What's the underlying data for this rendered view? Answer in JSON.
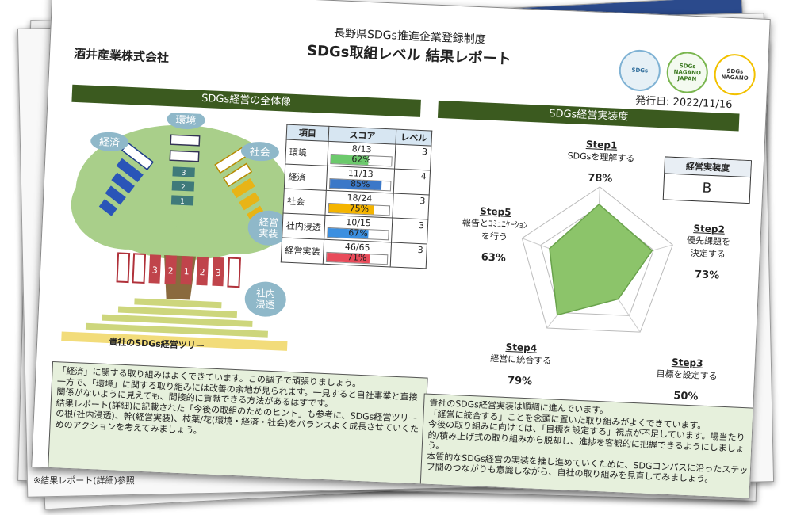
{
  "header": {
    "subtitle": "長野県SDGs推進企業登録制度",
    "title": "SDGs取組レベル 結果レポート",
    "company": "酒井産業株式会社",
    "issue_date": "発行日: 2022/11/16"
  },
  "logos": [
    {
      "name": "nagano-sdgs-logo",
      "text": "SDGs"
    },
    {
      "name": "sdgs-nagano-japan-logo",
      "text": "SDGs NAGANO JAPAN"
    },
    {
      "name": "sdgs-nagano-logo",
      "text": "SDGs NAGANO"
    }
  ],
  "left_section": {
    "heading": "SDGs経営の全体像",
    "tree_labels": {
      "environment": "環境",
      "economy": "経済",
      "society": "社会",
      "management": "経営\n実装",
      "penetration": "社内\n浸透"
    },
    "tree_caption": "貴社のSDGs経営ツリー",
    "table": {
      "headers": [
        "項目",
        "スコア",
        "レベル"
      ],
      "rows": [
        {
          "item": "環境",
          "score": "8/13",
          "level": "3",
          "pct": 62,
          "pct_label": "62%",
          "color": "#6cc96c"
        },
        {
          "item": "経済",
          "score": "11/13",
          "level": "4",
          "pct": 85,
          "pct_label": "85%",
          "color": "#3b78c8"
        },
        {
          "item": "社会",
          "score": "18/24",
          "level": "3",
          "pct": 75,
          "pct_label": "75%",
          "color": "#f4b400"
        },
        {
          "item": "社内浸透",
          "score": "10/15",
          "level": "3",
          "pct": 67,
          "pct_label": "67%",
          "color": "#3b8fe0"
        },
        {
          "item": "経営実装",
          "score": "46/65",
          "level": "3",
          "pct": 71,
          "pct_label": "71%",
          "color": "#e84b5a"
        }
      ]
    },
    "comment": "「経済」に関する取り組みはよくできています。この調子で頑張りましょう。\n一方で、「環境」に関する取り組みには改善の余地が見られます。一見すると自社事業と直接関係がないように見えても、間接的に貢献できる方法があるはずです。\n結果レポート(詳細)に記載された「今後の取組のためのヒント」も参考に、SDGs経営ツリーの根(社内浸透)、幹(経営実装)、枝葉/花(環境・経済・社会)をバランスよく成長させていくためのアクションを考えてみましょう。"
  },
  "right_section": {
    "heading": "SDGs経営実装度",
    "level_box": {
      "label": "経営実装度",
      "value": "B"
    },
    "steps": [
      {
        "step": "Step1",
        "desc": "SDGsを理解する",
        "pct": 78,
        "pct_label": "78%"
      },
      {
        "step": "Step2",
        "desc": "優先課題を\n決定する",
        "pct": 73,
        "pct_label": "73%"
      },
      {
        "step": "Step3",
        "desc": "目標を設定する",
        "pct": 50,
        "pct_label": "50%"
      },
      {
        "step": "Step4",
        "desc": "経営に統合する",
        "pct": 79,
        "pct_label": "79%"
      },
      {
        "step": "Step5",
        "desc": "報告とｺﾐｭﾆｹｰｼｮﾝ\nを行う",
        "pct": 63,
        "pct_label": "63%"
      }
    ],
    "comment": "貴社のSDGs経営実装は順調に進んでいます。\n「経営に統合する」ことを念頭に置いた取り組みがよくできています。\n今後の取り組みに向けては、「目標を設定する」視点が不足しています。場当たり的/積み上げ式の取り組みから脱却し、進捗を客観的に把握できるようにしましょう。\n本質的なSDGs経営の実装を推し進めていくために、SDGコンパスに沿ったステップ間のつながりも意識しながら、自社の取り組みを見直してみましょう。"
  },
  "footer_note": "※結果レポート(詳細)参照"
}
